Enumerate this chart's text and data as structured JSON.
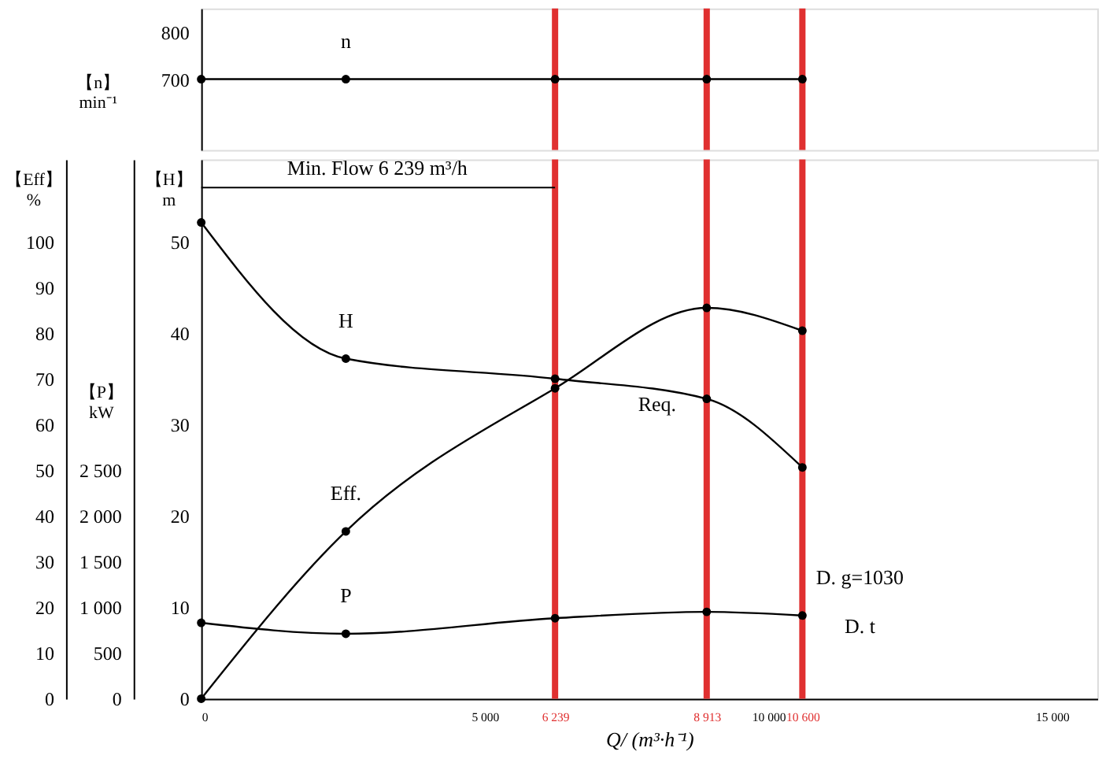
{
  "chart_data": [
    {
      "type": "line",
      "ylabel": "【n】 min⁻¹",
      "x": [
        0,
        2550,
        6239,
        8913,
        10600
      ],
      "xlim": [
        0,
        15800
      ],
      "ylim": [
        550,
        850
      ],
      "yticks": [
        700,
        800
      ],
      "tick_labels": "y",
      "series": [
        {
          "name": "n",
          "color": "#000000",
          "axis": "y",
          "values": [
            700,
            700,
            700,
            700,
            700
          ]
        }
      ],
      "ref_lines": [
        {
          "axis": "x",
          "value": 6239,
          "color": "#e03030"
        },
        {
          "axis": "x",
          "value": 8913,
          "color": "#e03030"
        },
        {
          "axis": "x",
          "value": 10600,
          "color": "#e03030"
        }
      ],
      "marker": "circle",
      "line_style": "solid"
    },
    {
      "type": "line",
      "xlabel": "Q/ (m³·h⁻¹)",
      "ylabel": "【Eff】 %",
      "y2label": "【H】 m",
      "y3label": "【P】 kW",
      "x": [
        0,
        2550,
        6239,
        8913,
        10600
      ],
      "xlim": [
        0,
        15800
      ],
      "xticks": [
        0,
        {
          "value": 5000,
          "label": "5 000"
        },
        {
          "value": 6239,
          "label": "6 239"
        },
        {
          "value": 8913,
          "label": "8 913"
        },
        {
          "value": 10000,
          "label": "10 000"
        },
        {
          "value": 10600,
          "label": "10 600"
        },
        {
          "value": 15000,
          "label": "15 000"
        }
      ],
      "ylim": [
        0,
        118
      ],
      "yticks": [
        0,
        10,
        20,
        30,
        40,
        50,
        60,
        70,
        80,
        90,
        100
      ],
      "y2lim": [
        0,
        59
      ],
      "y2ticks": [
        0,
        10,
        20,
        30,
        40,
        50
      ],
      "y3lim": [
        0,
        5900
      ],
      "y3ticks": [
        0,
        500,
        {
          "value": 1000,
          "label": "1 000"
        },
        {
          "value": 1500,
          "label": "1 500"
        },
        {
          "value": 2000,
          "label": "2 000"
        },
        {
          "value": 2500,
          "label": "2 500"
        }
      ],
      "series": [
        {
          "name": "H",
          "color": "#000000",
          "axis": "y2",
          "values": [
            52.1,
            37.2,
            35.0,
            32.8,
            25.3
          ]
        },
        {
          "name": "Eff.",
          "color": "#000000",
          "axis": "y",
          "values": [
            0,
            36.6,
            67.9,
            85.5,
            80.5
          ]
        },
        {
          "name": "P",
          "color": "#000000",
          "axis": "y3",
          "values": [
            830,
            710,
            880,
            950,
            910
          ]
        }
      ],
      "ref_lines": [
        {
          "axis": "x",
          "value": 6239,
          "color": "#e03030"
        },
        {
          "axis": "x",
          "value": 8913,
          "color": "#e03030"
        },
        {
          "axis": "x",
          "value": 10600,
          "color": "#e03030"
        }
      ],
      "annotations": [
        "Min. Flow 6 239 m³/h",
        "Req.",
        "D. g=1030",
        "D. t"
      ],
      "marker": "circle",
      "line_style": "solid"
    }
  ]
}
